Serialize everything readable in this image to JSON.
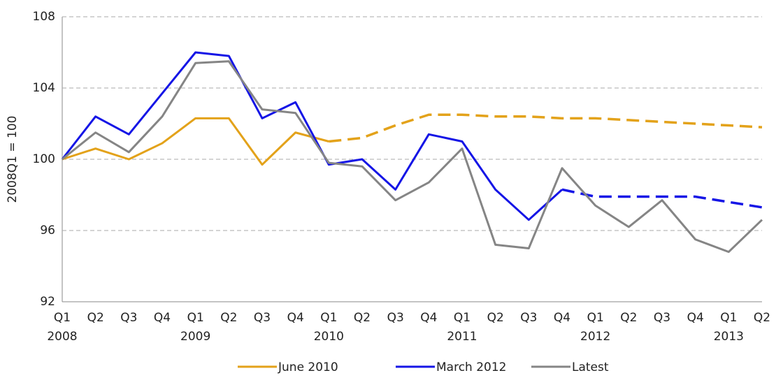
{
  "chart_data": {
    "type": "line",
    "y_label": "2008Q1 = 100",
    "categories": [
      "Q1",
      "Q2",
      "Q3",
      "Q4",
      "Q1",
      "Q2",
      "Q3",
      "Q4",
      "Q1",
      "Q2",
      "Q3",
      "Q4",
      "Q1",
      "Q2",
      "Q3",
      "Q4",
      "Q1",
      "Q2",
      "Q3",
      "Q4",
      "Q1",
      "Q2"
    ],
    "category_years": [
      "2008",
      null,
      null,
      null,
      "2009",
      null,
      null,
      null,
      "2010",
      null,
      null,
      null,
      "2011",
      null,
      null,
      null,
      "2012",
      null,
      null,
      null,
      "2013",
      null
    ],
    "series": [
      {
        "name": "June 2010",
        "color": "#e3a21a",
        "dash_from": 8,
        "values": [
          100,
          100.6,
          100,
          100.9,
          102.3,
          102.3,
          99.7,
          101.5,
          101.0,
          101.2,
          101.9,
          102.5,
          102.5,
          102.4,
          102.4,
          102.3,
          102.3,
          102.2,
          102.1,
          102.0,
          101.9,
          101.8
        ]
      },
      {
        "name": "March 2012",
        "color": "#1515e6",
        "dash_from": 15,
        "values": [
          100,
          102.4,
          101.4,
          103.7,
          106.0,
          105.8,
          102.3,
          103.2,
          99.7,
          100.0,
          98.3,
          101.4,
          101.0,
          98.3,
          96.6,
          98.3,
          97.9,
          97.9,
          97.9,
          97.9,
          97.6,
          97.3
        ]
      },
      {
        "name": "Latest",
        "color": "#858585",
        "values": [
          100,
          101.5,
          100.4,
          102.4,
          105.4,
          105.5,
          102.8,
          102.6,
          99.8,
          99.6,
          97.7,
          98.7,
          100.6,
          95.2,
          95.0,
          99.5,
          97.4,
          96.2,
          97.7,
          95.5,
          94.8,
          96.6
        ]
      }
    ],
    "ylim": [
      92,
      108
    ],
    "yticks": [
      92,
      96,
      100,
      104,
      108
    ],
    "grid": true
  }
}
